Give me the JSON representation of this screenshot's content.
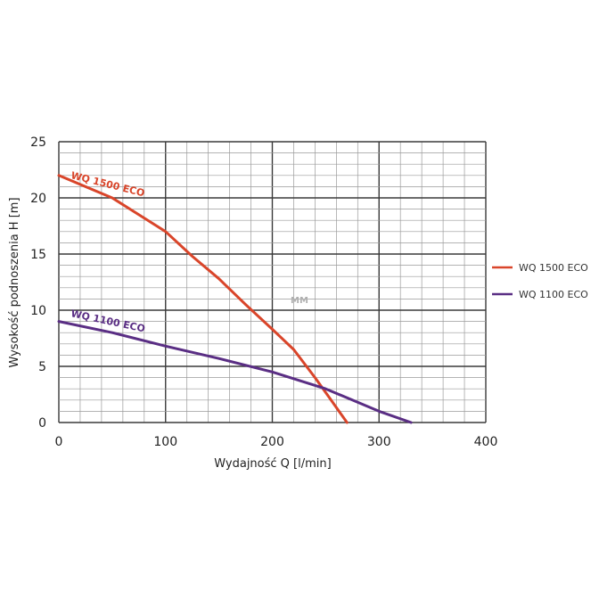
{
  "chart_data": {
    "type": "line",
    "xlabel": "Wydajność Q [l/min]",
    "ylabel": "Wysokość podnoszenia H [m]",
    "xlim": [
      0,
      400
    ],
    "ylim": [
      0,
      25
    ],
    "x_ticks": [
      "0",
      "100",
      "200",
      "300",
      "400"
    ],
    "y_ticks": [
      "0",
      "5",
      "10",
      "15",
      "20",
      "25"
    ],
    "grid": true,
    "legend_position": "right",
    "watermark": "MM",
    "series": [
      {
        "name": "WQ 1500 ECO",
        "color": "#d9452a",
        "x": [
          0,
          25,
          50,
          75,
          100,
          125,
          150,
          175,
          200,
          220,
          240,
          255,
          270
        ],
        "y": [
          22,
          21,
          20,
          18.5,
          17,
          14.8,
          12.8,
          10.5,
          8.3,
          6.5,
          4,
          2,
          0
        ]
      },
      {
        "name": "WQ 1100 ECO",
        "color": "#5a2e84",
        "x": [
          0,
          50,
          100,
          150,
          200,
          250,
          275,
          300,
          330
        ],
        "y": [
          9,
          8,
          6.8,
          5.7,
          4.5,
          3,
          2,
          1,
          0
        ]
      }
    ]
  }
}
